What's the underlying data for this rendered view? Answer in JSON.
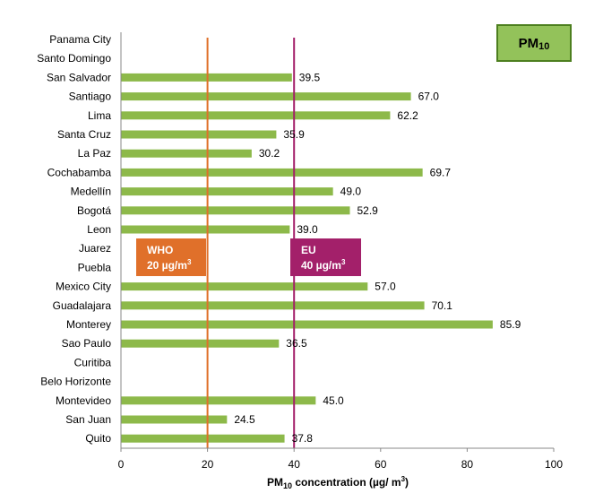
{
  "chart_data": {
    "type": "bar",
    "orientation": "horizontal",
    "badge": {
      "main": "PM",
      "sub": "10"
    },
    "categories": [
      "Panama City",
      "Santo Domingo",
      "San Salvador",
      "Santiago",
      "Lima",
      "Santa Cruz",
      "La Paz",
      "Cochabamba",
      "Medellín",
      "Bogotá",
      "Leon",
      "Juarez",
      "Puebla",
      "Mexico City",
      "Guadalajara",
      "Monterey",
      "Sao Paulo",
      "Curitiba",
      "Belo Horizonte",
      "Montevideo",
      "San Juan",
      "Quito"
    ],
    "values": [
      null,
      null,
      39.5,
      67.0,
      62.2,
      35.9,
      30.2,
      69.7,
      49.0,
      52.9,
      39.0,
      null,
      null,
      57.0,
      70.1,
      85.9,
      36.5,
      null,
      null,
      45.0,
      24.5,
      37.8
    ],
    "value_labels": [
      "",
      "",
      "39.5",
      "67.0",
      "62.2",
      "35.9",
      "30.2",
      "69.7",
      "49.0",
      "52.9",
      "39.0",
      "",
      "",
      "57.0",
      "70.1",
      "85.9",
      "36.5",
      "",
      "",
      "45.0",
      "24.5",
      "37.8"
    ],
    "xlim": [
      0,
      100
    ],
    "xticks": [
      "0",
      "20",
      "40",
      "60",
      "80",
      "100"
    ],
    "xlabel": {
      "pre": "PM",
      "sub": "10",
      "post": " concentration (µg/ m",
      "sup": "3",
      "end": ")"
    },
    "grid": false,
    "reference_lines": [
      {
        "value": 20,
        "line1": "WHO",
        "line2_pre": "20 µg/m",
        "line2_sup": "3",
        "color": "#e0702a"
      },
      {
        "value": 40,
        "line1": "EU",
        "line2_pre": "40 µg/m",
        "line2_sup": "3",
        "color": "#a3206a"
      }
    ],
    "colors": {
      "bar": "#8db94a",
      "badge_fill": "#93c25a",
      "badge_border": "#4d7f1f"
    }
  }
}
